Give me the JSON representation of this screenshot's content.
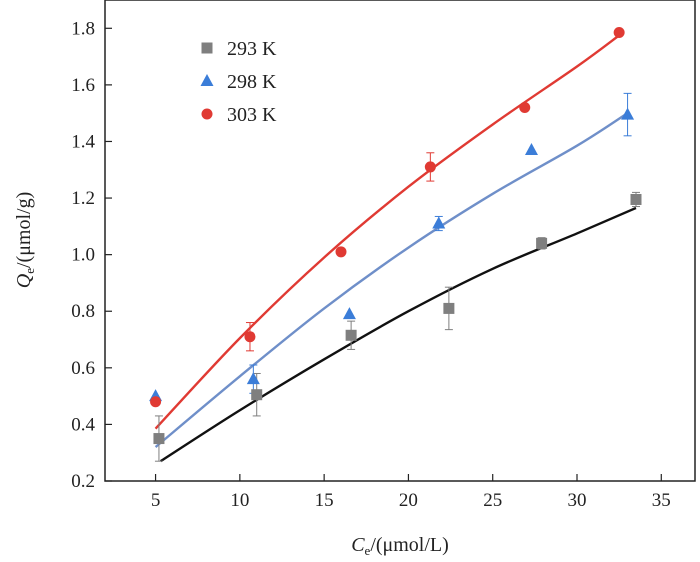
{
  "chart_data": {
    "type": "scatter",
    "title": "",
    "xlabel": {
      "main": "C",
      "sub": "e",
      "rest": "/(μmol/L)"
    },
    "ylabel": {
      "main": "Q",
      "sub": "e",
      "rest": "/(μmol/g)"
    },
    "xlim": [
      2,
      37
    ],
    "ylim": [
      0.2,
      1.9
    ],
    "xticks": [
      5,
      10,
      15,
      20,
      25,
      30,
      35
    ],
    "yticks": [
      0.2,
      0.4,
      0.6,
      0.8,
      1.0,
      1.2,
      1.4,
      1.6,
      1.8
    ],
    "xtick_labels": [
      "5",
      "10",
      "15",
      "20",
      "25",
      "30",
      "35"
    ],
    "ytick_labels": [
      "0.2",
      "0.4",
      "0.6",
      "0.8",
      "1.0",
      "1.2",
      "1.4",
      "1.6",
      "1.8"
    ],
    "legend_position": "top-left",
    "series": [
      {
        "name": "293 K",
        "marker": "square",
        "marker_color": "#7f7f7f",
        "fit_color": "#111111",
        "points": [
          {
            "x": 5.2,
            "y": 0.35,
            "err": 0.08
          },
          {
            "x": 11.0,
            "y": 0.505,
            "err": 0.075
          },
          {
            "x": 16.6,
            "y": 0.715,
            "err": 0.05
          },
          {
            "x": 22.4,
            "y": 0.81,
            "err": 0.075
          },
          {
            "x": 27.9,
            "y": 1.04,
            "err": 0.02
          },
          {
            "x": 33.5,
            "y": 1.195,
            "err": 0.025
          }
        ],
        "fit": [
          [
            5.3,
            0.27
          ],
          [
            10,
            0.45
          ],
          [
            15,
            0.63
          ],
          [
            20,
            0.8
          ],
          [
            25,
            0.95
          ],
          [
            30,
            1.075
          ],
          [
            33.5,
            1.165
          ]
        ]
      },
      {
        "name": "298 K",
        "marker": "triangle",
        "marker_color": "#3b7dd8",
        "fit_color": "#6f8fc9",
        "points": [
          {
            "x": 5.0,
            "y": 0.5,
            "err": 0.0
          },
          {
            "x": 10.8,
            "y": 0.56,
            "err": 0.05
          },
          {
            "x": 16.5,
            "y": 0.79,
            "err": 0.0
          },
          {
            "x": 21.8,
            "y": 1.11,
            "err": 0.025
          },
          {
            "x": 27.3,
            "y": 1.37,
            "err": 0.0
          },
          {
            "x": 33.0,
            "y": 1.495,
            "err": 0.075
          }
        ],
        "fit": [
          [
            5.0,
            0.32
          ],
          [
            10,
            0.57
          ],
          [
            15,
            0.81
          ],
          [
            20,
            1.025
          ],
          [
            25,
            1.215
          ],
          [
            30,
            1.385
          ],
          [
            33,
            1.5
          ]
        ]
      },
      {
        "name": "303 K",
        "marker": "circle",
        "marker_color": "#e03a33",
        "fit_color": "#e03a33",
        "points": [
          {
            "x": 5.0,
            "y": 0.48,
            "err": 0.0
          },
          {
            "x": 10.6,
            "y": 0.71,
            "err": 0.05
          },
          {
            "x": 16.0,
            "y": 1.01,
            "err": 0.0
          },
          {
            "x": 21.3,
            "y": 1.31,
            "err": 0.05
          },
          {
            "x": 26.9,
            "y": 1.52,
            "err": 0.0
          },
          {
            "x": 32.5,
            "y": 1.785,
            "err": 0.0
          }
        ],
        "fit": [
          [
            5.0,
            0.385
          ],
          [
            10,
            0.705
          ],
          [
            15,
            0.99
          ],
          [
            20,
            1.24
          ],
          [
            25,
            1.46
          ],
          [
            30,
            1.665
          ],
          [
            32.5,
            1.775
          ]
        ]
      }
    ]
  }
}
